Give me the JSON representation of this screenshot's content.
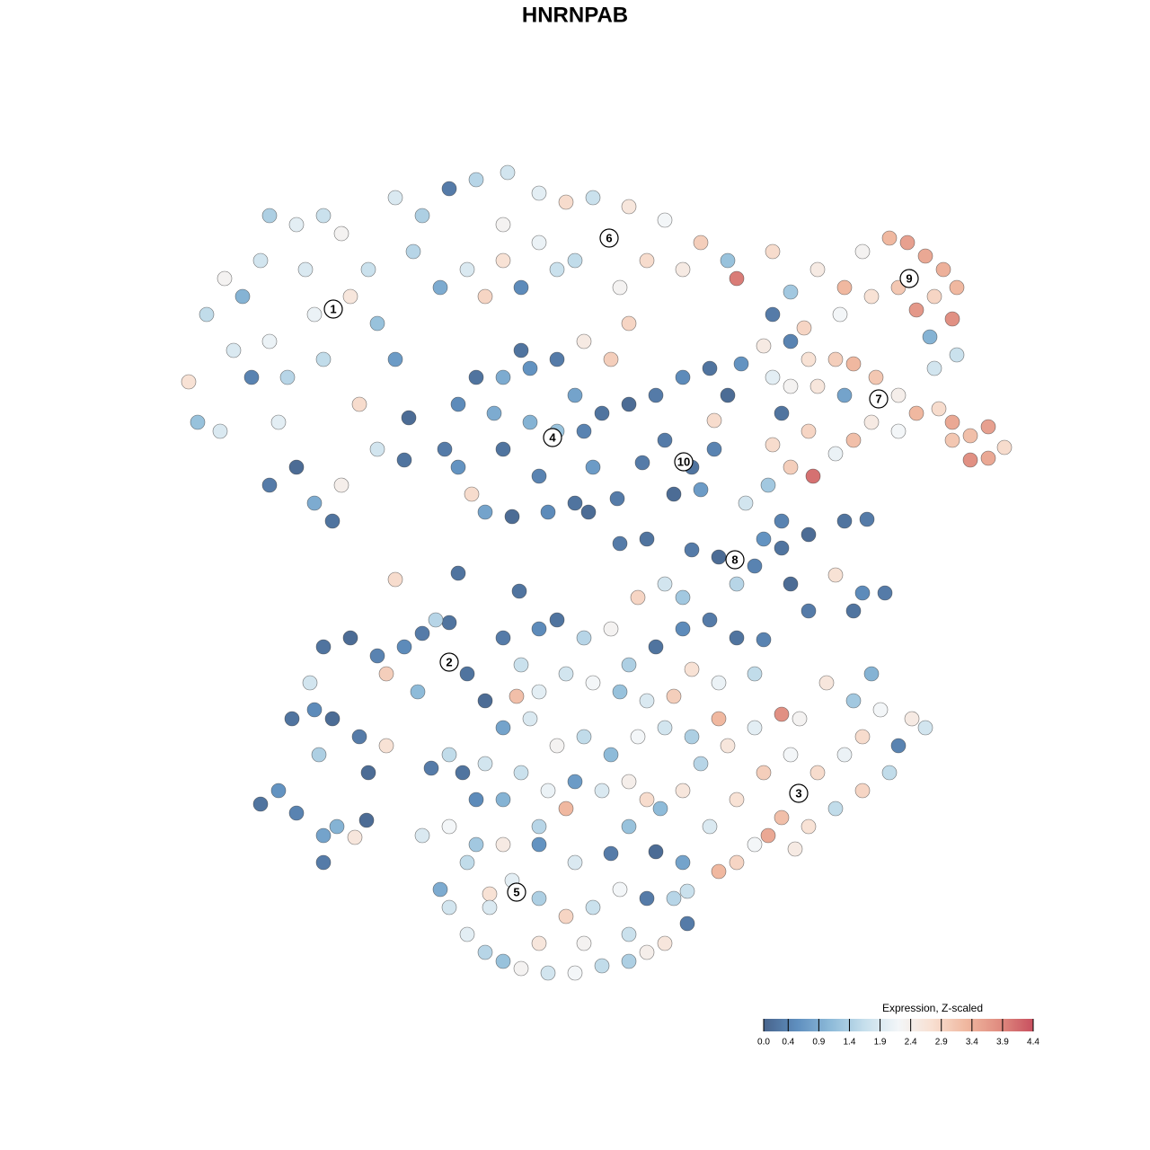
{
  "chart_data": {
    "type": "scatter",
    "title": "HNRNPAB",
    "x": [
      210,
      230,
      220,
      245,
      250,
      270,
      290,
      300,
      320,
      310,
      330,
      350,
      370,
      380,
      400,
      360,
      340,
      380,
      410,
      420,
      440,
      420,
      300,
      330,
      360,
      300,
      390,
      350,
      280,
      260,
      440,
      470,
      500,
      530,
      565,
      600,
      630,
      660,
      700,
      740,
      780,
      810,
      820,
      760,
      720,
      680,
      640,
      600,
      560,
      520,
      490,
      460,
      540,
      580,
      620,
      690,
      700,
      680,
      650,
      560,
      860,
      880,
      910,
      940,
      960,
      990,
      1010,
      1030,
      1050,
      1065,
      1040,
      1020,
      1000,
      970,
      935,
      1060,
      1035,
      1065,
      895,
      860,
      850,
      880,
      900,
      930,
      950,
      975,
      1000,
      1020,
      1045,
      1060,
      1080,
      1100,
      1118,
      1100,
      1080,
      1060,
      1000,
      970,
      940,
      910,
      880,
      870,
      900,
      905,
      880,
      860,
      930,
      950,
      860,
      1040,
      495,
      510,
      530,
      560,
      590,
      620,
      640,
      650,
      660,
      640,
      610,
      570,
      540,
      525,
      510,
      560,
      590,
      600,
      620,
      550,
      580,
      455,
      450,
      670,
      700,
      730,
      760,
      790,
      810,
      740,
      770,
      795,
      750,
      780,
      715,
      795,
      825,
      690,
      720,
      770,
      800,
      840,
      870,
      900,
      940,
      965,
      930,
      960,
      985,
      950,
      900,
      880,
      850,
      830,
      855,
      870,
      820,
      740,
      760,
      710,
      440,
      510,
      578,
      655,
      687,
      290,
      310,
      330,
      360,
      375,
      395,
      360,
      408,
      325,
      350,
      370,
      400,
      410,
      430,
      355,
      345,
      360,
      390,
      420,
      450,
      470,
      500,
      520,
      540,
      430,
      465,
      485,
      500,
      515,
      530,
      480,
      735,
      760,
      790,
      800,
      820,
      840,
      870,
      900,
      930,
      960,
      990,
      1000,
      1015,
      1030,
      980,
      950,
      970,
      920,
      890,
      870,
      840,
      810,
      800,
      780,
      850,
      880,
      910,
      940,
      960,
      820,
      855,
      885,
      760,
      730,
      765,
      470,
      490,
      500,
      520,
      540,
      560,
      580,
      610,
      640,
      670,
      700,
      720,
      740,
      765,
      750,
      720,
      690,
      660,
      630,
      600,
      570,
      545,
      520,
      500,
      530,
      560,
      600,
      640,
      680,
      700,
      545,
      600,
      650,
      700,
      560,
      580,
      600,
      620,
      650,
      680,
      700,
      730,
      760,
      790,
      820,
      850,
      840,
      800,
      770,
      750,
      720,
      690,
      660,
      630,
      600,
      575,
      560,
      590,
      620,
      650,
      680,
      710,
      740,
      770,
      580,
      610,
      640,
      670,
      700,
      720,
      630,
      600,
      560,
      540
    ],
    "y": [
      855,
      930,
      810,
      800,
      970,
      950,
      990,
      900,
      860,
      810,
      760,
      720,
      700,
      740,
      830,
      880,
      980,
      1020,
      980,
      920,
      880,
      780,
      1040,
      1030,
      1040,
      740,
      950,
      930,
      860,
      890,
      1060,
      1040,
      1070,
      1080,
      1088,
      1065,
      1055,
      1060,
      1050,
      1035,
      1010,
      990,
      970,
      980,
      990,
      1015,
      990,
      1010,
      990,
      980,
      960,
      1000,
      950,
      960,
      980,
      960,
      920,
      880,
      900,
      1030,
      1000,
      955,
      980,
      960,
      1000,
      1015,
      1010,
      995,
      980,
      960,
      950,
      935,
      960,
      950,
      930,
      925,
      905,
      885,
      915,
      930,
      895,
      900,
      880,
      880,
      875,
      860,
      840,
      820,
      825,
      810,
      795,
      805,
      782,
      770,
      768,
      790,
      800,
      810,
      840,
      850,
      850,
      820,
      800,
      750,
      760,
      785,
      775,
      790,
      860,
      870,
      780,
      830,
      860,
      860,
      870,
      880,
      840,
      800,
      760,
      720,
      710,
      705,
      710,
      730,
      760,
      780,
      810,
      750,
      800,
      820,
      890,
      815,
      768,
      820,
      830,
      840,
      860,
      870,
      840,
      790,
      760,
      780,
      730,
      735,
      765,
      812,
      875,
      675,
      680,
      668,
      660,
      650,
      670,
      685,
      700,
      702,
      640,
      620,
      620,
      600,
      600,
      630,
      680,
      720,
      740,
      700,
      630,
      630,
      615,
      615,
      635,
      642,
      622,
      710,
      725,
      385,
      400,
      375,
      350,
      360,
      348,
      320,
      367,
      480,
      490,
      480,
      460,
      420,
      450,
      440,
      520,
      560,
      570,
      550,
      560,
      575,
      587,
      530,
      500,
      530,
      510,
      590,
      440,
      420,
      390,
      425,
      380,
      400,
      360,
      310,
      320,
      340,
      370,
      360,
      380,
      400,
      420,
      450,
      480,
      470,
      490,
      500,
      530,
      520,
      480,
      485,
      470,
      450,
      480,
      430,
      420,
      440,
      420,
      440,
      460,
      390,
      350,
      335,
      320,
      332,
      288,
      350,
      290,
      270,
      240,
      220,
      210,
      202,
      197,
      197,
      205,
      210,
      220,
      230,
      252,
      280,
      280,
      290,
      270,
      260,
      280,
      300,
      285,
      320,
      360,
      340,
      340,
      340,
      320,
      330,
      360,
      270,
      230,
      230,
      240,
      570,
      540,
      580,
      590,
      570,
      580,
      540,
      560,
      580,
      590,
      570,
      568,
      530,
      520,
      535,
      505,
      500,
      510,
      520,
      530,
      510,
      505,
      470,
      480,
      450,
      460,
      440,
      460,
      470,
      460,
      420,
      400,
      410,
      400,
      410,
      390,
      380,
      360,
      390,
      430
    ],
    "values": [
      2.7,
      1.6,
      1.2,
      1.9,
      2.3,
      1.0,
      1.8,
      2.1,
      1.5,
      2.0,
      0.1,
      0.9,
      0.2,
      2.4,
      2.8,
      1.6,
      1.9,
      2.3,
      1.7,
      1.2,
      0.7,
      1.8,
      1.4,
      2.0,
      1.7,
      0.3,
      2.6,
      2.1,
      0.4,
      1.9,
      1.9,
      1.4,
      0.3,
      1.5,
      1.8,
      2.0,
      2.8,
      1.7,
      2.6,
      2.2,
      3.0,
      1.2,
      4.0,
      2.5,
      2.8,
      2.2,
      1.6,
      2.1,
      2.7,
      1.9,
      0.9,
      1.5,
      2.9,
      0.5,
      1.7,
      2.3,
      2.9,
      3.0,
      2.5,
      2.3,
      2.8,
      1.3,
      2.5,
      3.3,
      2.3,
      3.3,
      3.6,
      3.5,
      3.4,
      3.3,
      2.9,
      3.7,
      3.1,
      2.7,
      2.2,
      3.8,
      1.0,
      1.7,
      2.9,
      0.3,
      2.5,
      0.4,
      2.7,
      3.0,
      3.3,
      3.1,
      2.4,
      3.3,
      2.8,
      3.5,
      3.2,
      3.6,
      2.8,
      3.5,
      3.8,
      3.1,
      2.2,
      2.5,
      0.8,
      2.6,
      2.3,
      0.2,
      2.9,
      4.1,
      3.0,
      2.8,
      2.1,
      3.2,
      2.0,
      1.8,
      0.3,
      0.5,
      0.2,
      0.9,
      0.6,
      0.3,
      0.8,
      0.4,
      0.7,
      0.2,
      0.5,
      0.1,
      0.8,
      2.8,
      0.6,
      0.2,
      1.0,
      0.4,
      1.2,
      0.9,
      0.2,
      0.1,
      0.2,
      0.2,
      0.1,
      0.3,
      0.5,
      0.2,
      0.1,
      0.3,
      0.2,
      0.4,
      0.1,
      0.7,
      0.3,
      2.8,
      0.6,
      0.3,
      0.2,
      0.3,
      0.1,
      0.4,
      0.2,
      0.1,
      0.2,
      0.3,
      2.7,
      0.5,
      0.3,
      0.2,
      0.3,
      0.1,
      0.6,
      1.8,
      1.3,
      0.4,
      1.5,
      1.8,
      1.3,
      2.9,
      2.8,
      0.2,
      0.2,
      0.1,
      0.3,
      0.2,
      0.6,
      0.4,
      0.8,
      1.0,
      2.6,
      0.3,
      0.1,
      0.2,
      0.5,
      0.1,
      0.3,
      0.1,
      2.7,
      1.4,
      1.8,
      0.2,
      0.1,
      0.4,
      0.5,
      0.3,
      0.2,
      0.2,
      0.1,
      3.0,
      1.1,
      1.5,
      1.6,
      0.2,
      0.5,
      0.3,
      1.1,
      2.6,
      1.9,
      3.3,
      2.9,
      2.2,
      3.2,
      2.7,
      1.6,
      2.9,
      1.6,
      0.4,
      2.5,
      1.8,
      2.2,
      1.3,
      1.0,
      2.6,
      2.3,
      3.8,
      2.0,
      2.6,
      3.3,
      1.5,
      3.0,
      2.2,
      2.8,
      2.1,
      2.8,
      2.7,
      3.5,
      2.5,
      0.8,
      0.1,
      1.7,
      1.9,
      0.9,
      1.8,
      2.0,
      1.5,
      1.2,
      2.3,
      1.8,
      2.2,
      1.6,
      1.4,
      2.4,
      2.6,
      0.3,
      1.5,
      0.3,
      2.2,
      1.7,
      2.9,
      1.4,
      2.0,
      2.7,
      1.6,
      2.2,
      1.3,
      2.5,
      0.6,
      1.9,
      0.3,
      1.2,
      1.9,
      2.6,
      2.3,
      1.7,
      0.3,
      1.7,
      0.5,
      0.2,
      1.5,
      2.3,
      1.4,
      0.2,
      0.5,
      0.3,
      0.2,
      0.4,
      1.6,
      2.1,
      2.7,
      3.0,
      1.9,
      1.2,
      2.2,
      1.8,
      2.0,
      3.2,
      0.8,
      1.9,
      2.3,
      1.6,
      1.1,
      2.2,
      1.8,
      1.4,
      1.7,
      2.1,
      0.7,
      1.9,
      2.4,
      2.8,
      3.3,
      1.5,
      1.0,
      1.8
    ],
    "clusters": {
      "labels": [
        "1",
        "2",
        "3",
        "4",
        "5",
        "6",
        "7",
        "8",
        "9",
        "10"
      ],
      "x": [
        371,
        500,
        889,
        615,
        575,
        678,
        978,
        818,
        1012,
        761
      ],
      "y": [
        936,
        543,
        397,
        793,
        287,
        1015,
        836,
        657,
        970,
        766
      ]
    },
    "colorscale": [
      "#48648c",
      "#5f8fbf",
      "#8ebbd9",
      "#c6dfec",
      "#f3f6f8",
      "#f8e0d2",
      "#f0b8a0",
      "#e08c80",
      "#c8505f"
    ],
    "colorbar": {
      "title": "Expression, Z-scaled",
      "ticks": [
        {
          "value": 0,
          "label": "0.0"
        },
        0.4,
        0.9,
        1.4,
        1.9,
        2.4,
        2.9,
        3.4,
        3.9,
        4.4
      ]
    }
  }
}
